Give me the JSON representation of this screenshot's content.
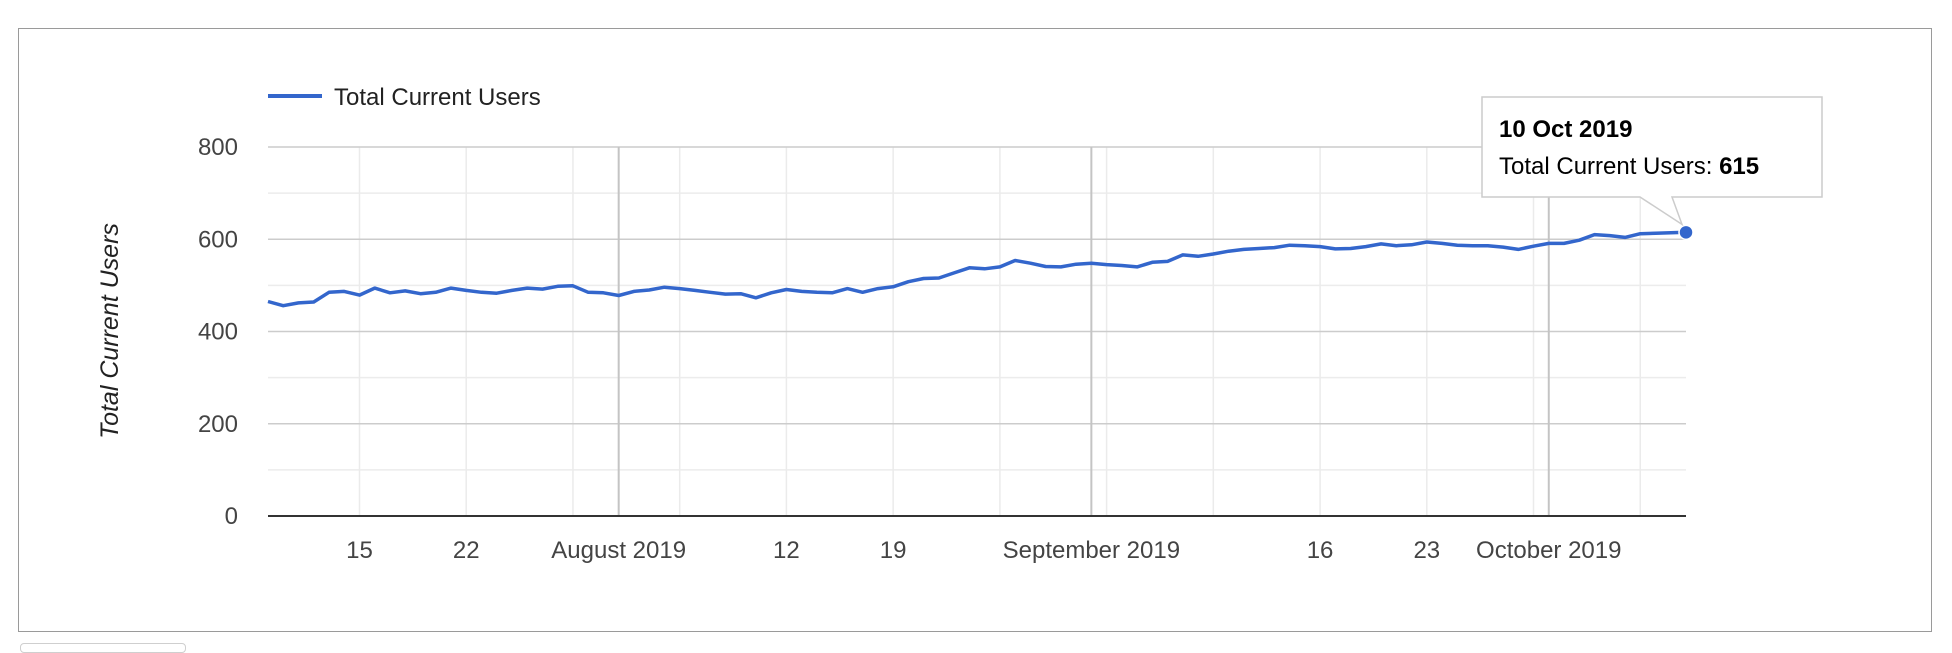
{
  "chart_data": {
    "type": "line",
    "series": [
      {
        "name": "Total Current Users",
        "color": "#3366cc",
        "x": [
          "2019-07-09",
          "2019-07-10",
          "2019-07-11",
          "2019-07-12",
          "2019-07-13",
          "2019-07-14",
          "2019-07-15",
          "2019-07-16",
          "2019-07-17",
          "2019-07-18",
          "2019-07-19",
          "2019-07-20",
          "2019-07-21",
          "2019-07-22",
          "2019-07-23",
          "2019-07-24",
          "2019-07-25",
          "2019-07-26",
          "2019-07-27",
          "2019-07-28",
          "2019-07-29",
          "2019-07-30",
          "2019-07-31",
          "2019-08-01",
          "2019-08-02",
          "2019-08-03",
          "2019-08-04",
          "2019-08-05",
          "2019-08-06",
          "2019-08-07",
          "2019-08-08",
          "2019-08-09",
          "2019-08-10",
          "2019-08-11",
          "2019-08-12",
          "2019-08-13",
          "2019-08-14",
          "2019-08-15",
          "2019-08-16",
          "2019-08-17",
          "2019-08-18",
          "2019-08-19",
          "2019-08-20",
          "2019-08-21",
          "2019-08-22",
          "2019-08-23",
          "2019-08-24",
          "2019-08-25",
          "2019-08-26",
          "2019-08-27",
          "2019-08-28",
          "2019-08-29",
          "2019-08-30",
          "2019-08-31",
          "2019-09-01",
          "2019-09-02",
          "2019-09-03",
          "2019-09-04",
          "2019-09-05",
          "2019-09-06",
          "2019-09-07",
          "2019-09-08",
          "2019-09-09",
          "2019-09-10",
          "2019-09-11",
          "2019-09-12",
          "2019-09-13",
          "2019-09-14",
          "2019-09-15",
          "2019-09-16",
          "2019-09-17",
          "2019-09-18",
          "2019-09-19",
          "2019-09-20",
          "2019-09-21",
          "2019-09-22",
          "2019-09-23",
          "2019-09-24",
          "2019-09-25",
          "2019-09-26",
          "2019-09-27",
          "2019-09-28",
          "2019-09-29",
          "2019-09-30",
          "2019-10-01",
          "2019-10-02",
          "2019-10-03",
          "2019-10-04",
          "2019-10-05",
          "2019-10-06",
          "2019-10-07",
          "2019-10-08",
          "2019-10-09",
          "2019-10-10"
        ],
        "values": [
          465,
          456,
          462,
          464,
          485,
          487,
          479,
          494,
          484,
          488,
          482,
          485,
          494,
          489,
          485,
          483,
          489,
          494,
          492,
          498,
          499,
          485,
          484,
          478,
          487,
          490,
          496,
          493,
          489,
          485,
          481,
          482,
          473,
          484,
          491,
          487,
          485,
          484,
          493,
          485,
          493,
          497,
          508,
          515,
          516,
          527,
          538,
          536,
          540,
          554,
          548,
          541,
          540,
          546,
          548,
          545,
          543,
          540,
          550,
          552,
          566,
          563,
          568,
          574,
          578,
          580,
          582,
          587,
          586,
          584,
          579,
          580,
          584,
          590,
          586,
          588,
          594,
          591,
          587,
          586,
          586,
          583,
          578,
          585,
          591,
          591,
          598,
          610,
          608,
          604,
          612,
          613,
          614,
          615
        ]
      }
    ],
    "xticks": [
      "15",
      "22",
      "August 2019",
      "12",
      "19",
      "September 2019",
      "16",
      "23",
      "October 2019"
    ],
    "xtick_dates": [
      "2019-07-15",
      "2019-07-22",
      "2019-08-01",
      "2019-08-12",
      "2019-08-19",
      "2019-09-01",
      "2019-09-16",
      "2019-09-23",
      "2019-10-01"
    ],
    "yticks": [
      "0",
      "200",
      "400",
      "600",
      "800"
    ],
    "ylim": [
      0,
      800
    ],
    "xlim": [
      "2019-07-09",
      "2019-10-10"
    ],
    "ylabel": "Total Current Users",
    "xlabel": "",
    "title": "",
    "legend": {
      "position": "top-left",
      "label": "Total Current Users"
    },
    "grid": true,
    "tooltip": {
      "date": "10 Oct 2019",
      "label": "Total Current Users: ",
      "value": "615",
      "point_date": "2019-10-10",
      "point_value": 615
    }
  }
}
